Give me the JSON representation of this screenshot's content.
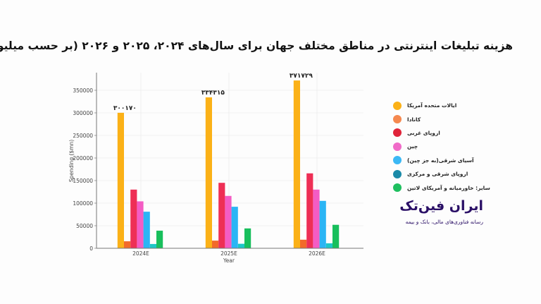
{
  "title": "هزینه تبلیغات اینترنتی در مناطق مختلف جهان برای سال‌های ۲۰۲۴، ۲۰۲۵ و ۲۰۲۶ (بر حسب میلیون دلار)",
  "brand": {
    "name": "ایران فین‌تک",
    "tagline": "رسانه فناوری‌های مالی، بانک و بیمه"
  },
  "legend": [
    {
      "label": "ایالات متحده آمریکا",
      "color": "#fbb117"
    },
    {
      "label": "کانادا",
      "color": "#f5894f"
    },
    {
      "label": "اروپای غربی",
      "color": "#e0243a"
    },
    {
      "label": "چین",
      "color": "#f06bc8"
    },
    {
      "label": "آسیای شرقی(به جز چین)",
      "color": "#3bb8f5"
    },
    {
      "label": "اروپای شرقی و مرکزی",
      "color": "#1a8aa8"
    },
    {
      "label": "سایر: خاورمیانه و آمریکای لاتین",
      "color": "#1fbf5f"
    }
  ],
  "chart_data": {
    "type": "bar",
    "title": "هزینه تبلیغات اینترنتی در مناطق مختلف جهان برای سال‌های ۲۰۲۴، ۲۰۲۵ و ۲۰۲۶ (بر حسب میلیون دلار)",
    "xlabel": "Year",
    "ylabel": "Spending ($mn)",
    "categories": [
      "2024E",
      "2025E",
      "2026E"
    ],
    "ylim": [
      0,
      390000
    ],
    "yticks": [
      0,
      50000,
      100000,
      150000,
      200000,
      250000,
      300000,
      350000
    ],
    "grid": true,
    "legend_position": "right",
    "series": [
      {
        "name": "ایالات متحده آمریکا",
        "color": "#fbb117",
        "values": [
          300170,
          334315,
          371729
        ]
      },
      {
        "name": "کانادا",
        "color": "#f26a2a",
        "values": [
          15500,
          17000,
          19000
        ]
      },
      {
        "name": "اروپای غربی",
        "color": "#ee2f55",
        "values": [
          130000,
          145000,
          166000
        ]
      },
      {
        "name": "چین",
        "color": "#f45cc4",
        "values": [
          104000,
          116000,
          130000
        ]
      },
      {
        "name": "آسیای شرقی(به جز چین)",
        "color": "#2bb5f5",
        "values": [
          81000,
          92000,
          105000
        ]
      },
      {
        "name": "اروپای شرقی و مرکزی",
        "color": "#1ec7c7",
        "values": [
          9500,
          10000,
          11000
        ]
      },
      {
        "name": "سایر: خاورمیانه و آمریکای لاتین",
        "color": "#18bf5c",
        "values": [
          39000,
          44000,
          52000
        ]
      }
    ],
    "annotations": [
      {
        "category": "2024E",
        "text": "۳۰۰۱۷۰"
      },
      {
        "category": "2025E",
        "text": "۳۳۴۳۱۵"
      },
      {
        "category": "2026E",
        "text": "۳۷۱۷۲۹"
      }
    ]
  }
}
